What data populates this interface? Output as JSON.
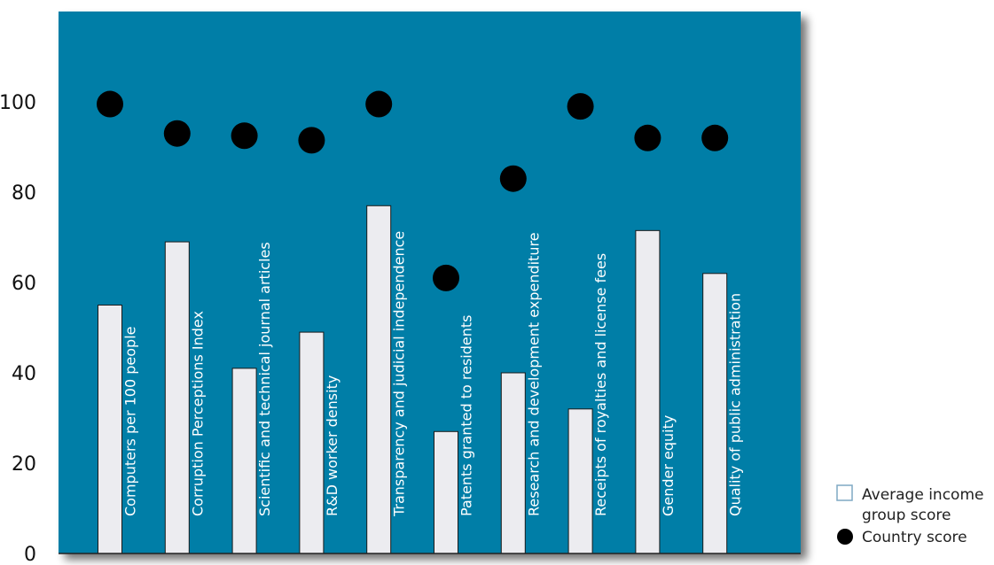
{
  "chart_data": {
    "type": "bar",
    "categories": [
      "Computers per 100 people",
      "Corruption Perceptions Index",
      "Scientific and technical journal articles",
      "R&D worker density",
      "Transparency and judicial independence",
      "Patents granted to residents",
      "Research and development expenditure",
      "Receipts of royalties and license fees",
      "Gender equity",
      "Quality of public administration"
    ],
    "series": [
      {
        "name": "Average income group score",
        "kind": "bar",
        "values": [
          55,
          69,
          41,
          49,
          77,
          27,
          40,
          32,
          71.5,
          62
        ]
      },
      {
        "name": "Country score",
        "kind": "dot",
        "values": [
          99.5,
          93,
          92.5,
          91.5,
          99.5,
          61,
          83,
          99,
          92,
          92
        ]
      }
    ],
    "yticks": [
      0,
      20,
      40,
      60,
      80,
      100
    ],
    "ylim": [
      0,
      120
    ],
    "title": "",
    "xlabel": "",
    "ylabel": "",
    "legend_position": "bottom-right",
    "grid": false
  },
  "legend": {
    "bar_label_line1": "Average income",
    "bar_label_line2": "group score",
    "dot_label": "Country score"
  },
  "colors": {
    "plot_background": "#037ea7",
    "bar_fill": "#ececf0",
    "bar_stroke": "#1a1a1a",
    "dot_fill": "#000000",
    "axis_line": "#222222",
    "legend_box_stroke": "#7fa8c4",
    "category_label": "#ffffff"
  }
}
